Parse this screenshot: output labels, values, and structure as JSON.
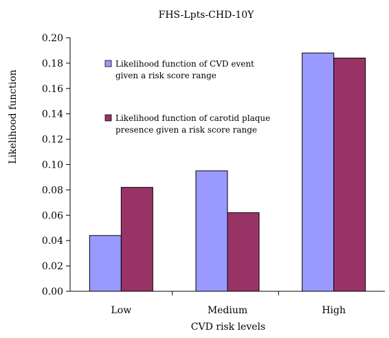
{
  "chart_data": {
    "type": "bar",
    "title": "FHS-Lpts-CHD-10Y",
    "xlabel": "CVD risk levels",
    "ylabel": "Likelihood function",
    "categories": [
      "Low",
      "Medium",
      "High"
    ],
    "series": [
      {
        "name": "Likelihood function of CVD event given a risk score range",
        "legend_lines": [
          "Likelihood function of CVD event",
          "given a risk score range"
        ],
        "values": [
          0.044,
          0.095,
          0.188
        ],
        "color": "#9999ff"
      },
      {
        "name": "Likelihood function of carotid plaque presence given a risk score range",
        "legend_lines": [
          "Likelihood function of carotid plaque",
          "presence given a risk score range"
        ],
        "values": [
          0.082,
          0.062,
          0.184
        ],
        "color": "#993366"
      }
    ],
    "ylim": [
      0,
      0.2
    ],
    "yticks": [
      "0.00",
      "0.02",
      "0.04",
      "0.06",
      "0.08",
      "0.10",
      "0.12",
      "0.14",
      "0.16",
      "0.18",
      "0.20"
    ],
    "grid": false,
    "legend_position": "top-left inside plot"
  }
}
